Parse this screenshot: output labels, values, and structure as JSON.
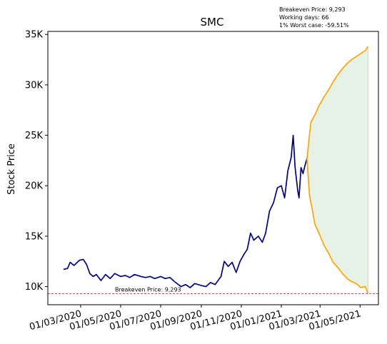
{
  "chart_data": {
    "type": "line",
    "title": "SMC",
    "ylabel": "Stock Price",
    "xlabel": "",
    "x_ticks": [
      "01/03/2020",
      "01/05/2020",
      "01/07/2020",
      "01/09/2020",
      "01/11/2020",
      "01/01/2021",
      "01/03/2021",
      "01/05/2021"
    ],
    "y_ticks": [
      "10K",
      "15K",
      "20K",
      "25K",
      "30K",
      "35K"
    ],
    "ylim": [
      8200,
      35300
    ],
    "xlim": [
      "2020-01-11",
      "2021-05-29"
    ],
    "grid": false,
    "annotations": [
      "Breakeven Price: 9,293",
      "Working days: 66",
      "1% Worst case: -59.51%"
    ],
    "breakeven_label": "Breakeven Price: 9,293",
    "breakeven_value": 9293,
    "series": [
      {
        "color": "#00008b",
        "points": [
          [
            "2020-02-04",
            11700
          ],
          [
            "2020-02-10",
            11800
          ],
          [
            "2020-02-14",
            12400
          ],
          [
            "2020-02-20",
            12100
          ],
          [
            "2020-02-28",
            12600
          ],
          [
            "2020-03-05",
            12700
          ],
          [
            "2020-03-10",
            12200
          ],
          [
            "2020-03-15",
            11300
          ],
          [
            "2020-03-20",
            11000
          ],
          [
            "2020-03-25",
            11200
          ],
          [
            "2020-04-01",
            10600
          ],
          [
            "2020-04-08",
            11200
          ],
          [
            "2020-04-15",
            10800
          ],
          [
            "2020-04-22",
            11300
          ],
          [
            "2020-05-01",
            11000
          ],
          [
            "2020-05-08",
            11100
          ],
          [
            "2020-05-15",
            10900
          ],
          [
            "2020-05-22",
            11200
          ],
          [
            "2020-06-01",
            11000
          ],
          [
            "2020-06-08",
            10900
          ],
          [
            "2020-06-15",
            11000
          ],
          [
            "2020-06-22",
            10800
          ],
          [
            "2020-07-01",
            11000
          ],
          [
            "2020-07-08",
            10800
          ],
          [
            "2020-07-15",
            10900
          ],
          [
            "2020-07-22",
            10500
          ],
          [
            "2020-08-01",
            10000
          ],
          [
            "2020-08-08",
            10200
          ],
          [
            "2020-08-15",
            9900
          ],
          [
            "2020-08-22",
            10300
          ],
          [
            "2020-09-01",
            10100
          ],
          [
            "2020-09-08",
            10000
          ],
          [
            "2020-09-15",
            10400
          ],
          [
            "2020-09-22",
            10200
          ],
          [
            "2020-10-01",
            11000
          ],
          [
            "2020-10-06",
            12500
          ],
          [
            "2020-10-12",
            12000
          ],
          [
            "2020-10-18",
            12400
          ],
          [
            "2020-10-24",
            11400
          ],
          [
            "2020-10-30",
            12500
          ],
          [
            "2020-11-05",
            13200
          ],
          [
            "2020-11-10",
            13700
          ],
          [
            "2020-11-15",
            15300
          ],
          [
            "2020-11-20",
            14600
          ],
          [
            "2020-11-27",
            15000
          ],
          [
            "2020-12-03",
            14400
          ],
          [
            "2020-12-08",
            15300
          ],
          [
            "2020-12-14",
            17500
          ],
          [
            "2020-12-20",
            18300
          ],
          [
            "2020-12-26",
            19800
          ],
          [
            "2021-01-01",
            20000
          ],
          [
            "2021-01-06",
            18800
          ],
          [
            "2021-01-11",
            21500
          ],
          [
            "2021-01-16",
            22800
          ],
          [
            "2021-01-19",
            25000
          ],
          [
            "2021-01-22",
            21800
          ],
          [
            "2021-01-26",
            19500
          ],
          [
            "2021-01-28",
            18800
          ],
          [
            "2021-01-31",
            21800
          ],
          [
            "2021-02-03",
            21200
          ],
          [
            "2021-02-06",
            22000
          ],
          [
            "2021-02-09",
            22700
          ]
        ]
      },
      {
        "color": "#ffa500",
        "points": [
          [
            "2021-02-09",
            22700
          ],
          [
            "2021-02-15",
            26300
          ],
          [
            "2021-02-21",
            27000
          ],
          [
            "2021-02-28",
            28000
          ],
          [
            "2021-03-07",
            28800
          ],
          [
            "2021-03-14",
            29500
          ],
          [
            "2021-03-21",
            30300
          ],
          [
            "2021-03-28",
            31000
          ],
          [
            "2021-04-04",
            31600
          ],
          [
            "2021-04-11",
            32100
          ],
          [
            "2021-04-18",
            32500
          ],
          [
            "2021-04-25",
            32800
          ],
          [
            "2021-05-02",
            33100
          ],
          [
            "2021-05-09",
            33400
          ],
          [
            "2021-05-13",
            33800
          ]
        ]
      },
      {
        "color": "#ffa500",
        "points": [
          [
            "2021-02-09",
            22700
          ],
          [
            "2021-02-13",
            19000
          ],
          [
            "2021-02-17",
            17700
          ],
          [
            "2021-02-21",
            16200
          ],
          [
            "2021-02-28",
            15200
          ],
          [
            "2021-03-07",
            14100
          ],
          [
            "2021-03-14",
            13300
          ],
          [
            "2021-03-21",
            12400
          ],
          [
            "2021-03-28",
            11900
          ],
          [
            "2021-04-04",
            11300
          ],
          [
            "2021-04-11",
            10800
          ],
          [
            "2021-04-18",
            10500
          ],
          [
            "2021-04-25",
            10300
          ],
          [
            "2021-05-02",
            9900
          ],
          [
            "2021-05-09",
            10000
          ],
          [
            "2021-05-13",
            9300
          ]
        ]
      }
    ],
    "band": {
      "color": "#e5f2e5"
    }
  }
}
